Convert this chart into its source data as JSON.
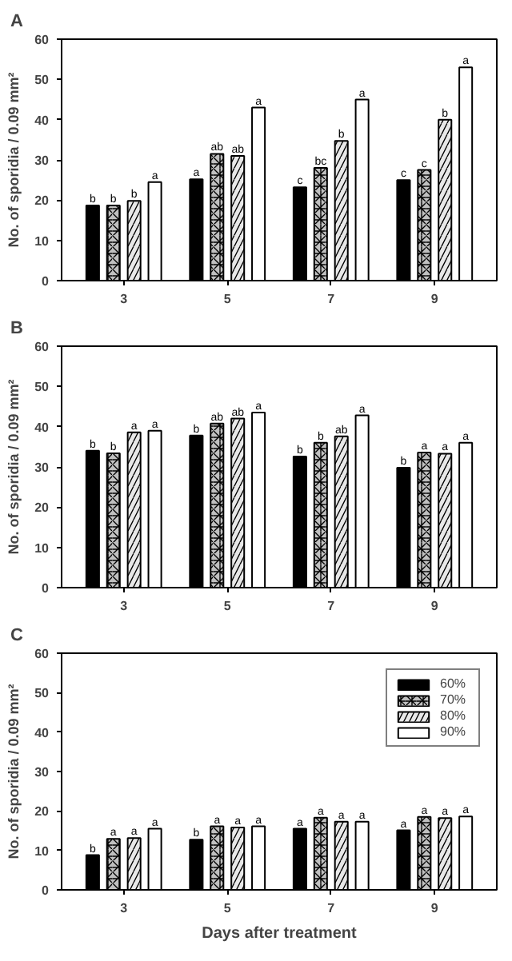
{
  "chart_data": [
    {
      "type": "bar",
      "title": "A",
      "ylabel": "No. of sporidia / 0.09 mm²",
      "categories": [
        "3",
        "5",
        "7",
        "9"
      ],
      "ylim": [
        0,
        60
      ],
      "yticks": [
        0,
        10,
        20,
        30,
        40,
        50,
        60
      ],
      "grid": false,
      "legend": false,
      "series": [
        {
          "color": "#000000",
          "values": [
            18.7,
            25.2,
            23.2,
            25.0
          ],
          "value_labels": [
            "b",
            "a",
            "c",
            "c"
          ]
        },
        {
          "color": "#c0c0c0",
          "values": [
            18.7,
            31.5,
            28.0,
            27.5
          ],
          "value_labels": [
            "b",
            "ab",
            "bc",
            "c"
          ]
        },
        {
          "color": "#e8e8e8",
          "values": [
            19.8,
            31.0,
            34.7,
            40.0
          ],
          "value_labels": [
            "b",
            "ab",
            "b",
            "b"
          ]
        },
        {
          "color": "#ffffff",
          "values": [
            24.5,
            43.0,
            45.0,
            53.0
          ],
          "value_labels": [
            "a",
            "a",
            "a",
            "a"
          ]
        }
      ]
    },
    {
      "type": "bar",
      "title": "B",
      "ylabel": "No. of sporidia / 0.09 mm²",
      "categories": [
        "3",
        "5",
        "7",
        "9"
      ],
      "ylim": [
        0,
        60
      ],
      "yticks": [
        0,
        10,
        20,
        30,
        40,
        50,
        60
      ],
      "grid": false,
      "legend": false,
      "series": [
        {
          "color": "#000000",
          "values": [
            34.0,
            37.8,
            32.6,
            29.8
          ],
          "value_labels": [
            "b",
            "b",
            "b",
            "b"
          ]
        },
        {
          "color": "#c0c0c0",
          "values": [
            33.4,
            40.8,
            36.0,
            33.6
          ],
          "value_labels": [
            "b",
            "ab",
            "b",
            "a"
          ]
        },
        {
          "color": "#e8e8e8",
          "values": [
            38.6,
            42.0,
            37.6,
            33.3
          ],
          "value_labels": [
            "a",
            "ab",
            "ab",
            "a"
          ]
        },
        {
          "color": "#ffffff",
          "values": [
            39.0,
            43.5,
            42.8,
            36.0
          ],
          "value_labels": [
            "a",
            "a",
            "a",
            "a"
          ]
        }
      ]
    },
    {
      "type": "bar",
      "title": "C",
      "xlabel": "Days after treatment",
      "ylabel": "No. of sporidia / 0.09 mm²",
      "categories": [
        "3",
        "5",
        "7",
        "9"
      ],
      "ylim": [
        0,
        60
      ],
      "yticks": [
        0,
        10,
        20,
        30,
        40,
        50,
        60
      ],
      "grid": false,
      "legend": "top right",
      "series": [
        {
          "name": "60%",
          "color": "#000000",
          "values": [
            8.8,
            12.7,
            15.5,
            15.1
          ],
          "value_labels": [
            "b",
            "b",
            "a",
            "a"
          ]
        },
        {
          "name": "70%",
          "color": "#c0c0c0",
          "values": [
            12.9,
            16.1,
            18.3,
            18.5
          ],
          "value_labels": [
            "a",
            "a",
            "a",
            "a"
          ]
        },
        {
          "name": "80%",
          "color": "#e8e8e8",
          "values": [
            13.1,
            15.8,
            17.3,
            18.2
          ],
          "value_labels": [
            "a",
            "a",
            "a",
            "a"
          ]
        },
        {
          "name": "90%",
          "color": "#ffffff",
          "values": [
            15.5,
            16.1,
            17.3,
            18.6
          ],
          "value_labels": [
            "a",
            "a",
            "a",
            "a"
          ]
        }
      ]
    }
  ]
}
